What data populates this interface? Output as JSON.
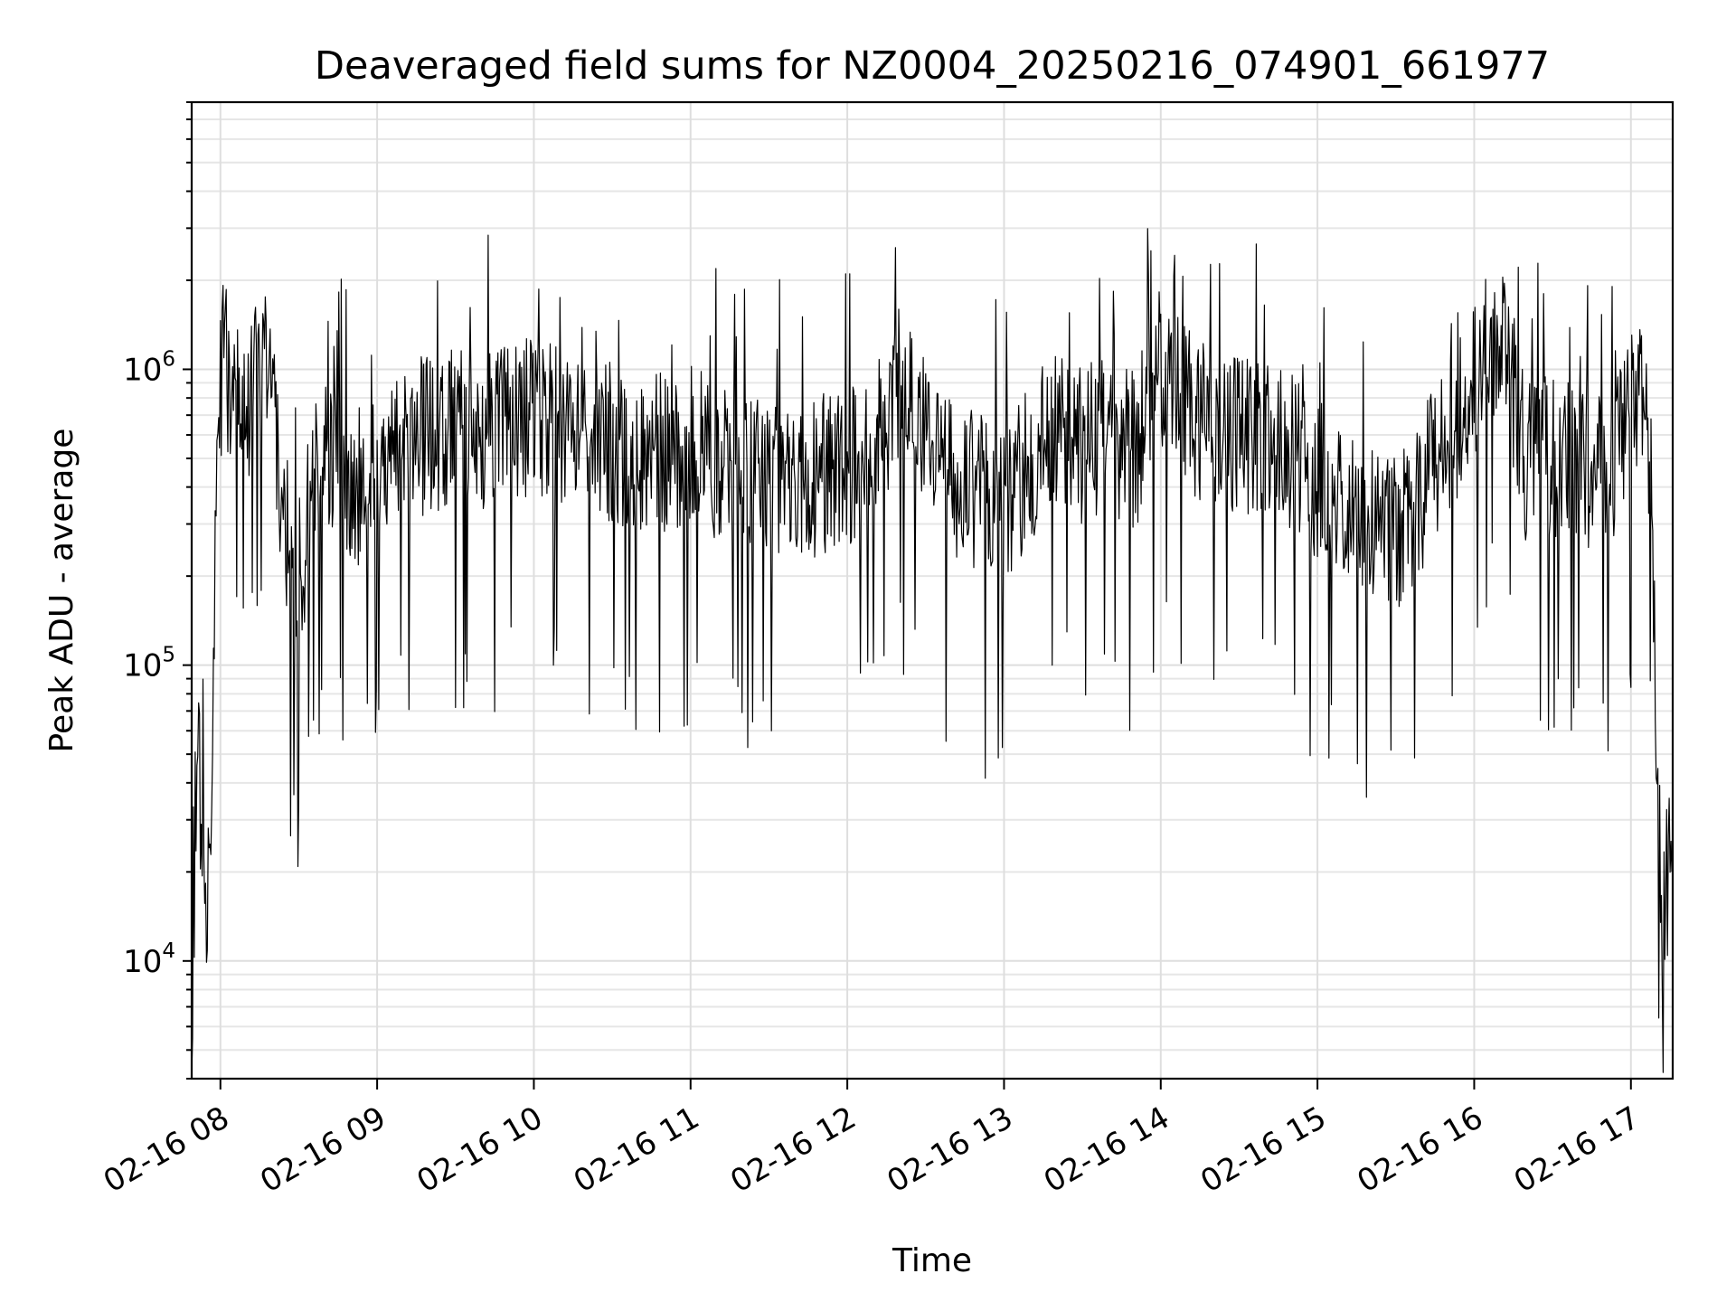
{
  "chart_data": {
    "type": "line",
    "title": "Deaveraged field sums for NZ0004_20250216_074901_661977",
    "xlabel": "Time",
    "ylabel": "Peak ADU - average",
    "yscale": "log",
    "xlim": [
      "2025-02-16 07:49",
      "2025-02-16 17:16"
    ],
    "ylim": [
      4000,
      8000000
    ],
    "grid": true,
    "legend": "none",
    "line_color": "#000000",
    "x_ticks": [
      "02-16 08",
      "02-16 09",
      "02-16 10",
      "02-16 11",
      "02-16 12",
      "02-16 13",
      "02-16 14",
      "02-16 15",
      "02-16 16",
      "02-16 17"
    ],
    "y_ticks": [
      {
        "value": 10000,
        "base": "10",
        "exp": "4"
      },
      {
        "value": 100000,
        "base": "10",
        "exp": "5"
      },
      {
        "value": 1000000,
        "base": "10",
        "exp": "6"
      }
    ],
    "series": [
      {
        "x": [
          "07:49",
          "07:51",
          "07:53",
          "07:55",
          "07:57",
          "07:59",
          "08:01",
          "08:05",
          "08:10",
          "08:15",
          "08:20",
          "08:25",
          "08:30",
          "08:35",
          "08:40",
          "08:45",
          "08:50",
          "08:55",
          "09:00",
          "09:10",
          "09:20",
          "09:30",
          "09:40",
          "09:50",
          "10:00",
          "10:15",
          "10:30",
          "10:45",
          "11:00",
          "11:15",
          "11:30",
          "11:45",
          "12:00",
          "12:10",
          "12:20",
          "12:30",
          "12:40",
          "12:50",
          "13:00",
          "13:10",
          "13:20",
          "13:30",
          "13:40",
          "13:50",
          "14:00",
          "14:15",
          "14:30",
          "14:45",
          "15:00",
          "15:15",
          "15:30",
          "15:45",
          "15:50",
          "15:55",
          "16:00",
          "16:05",
          "16:10",
          "16:15",
          "16:20",
          "16:30",
          "16:40",
          "16:50",
          "17:00",
          "17:05",
          "17:08",
          "17:10",
          "17:12",
          "17:14",
          "17:16"
        ],
        "y": [
          7000,
          60000,
          30000,
          15000,
          80000,
          700000,
          1100000,
          1000000,
          800000,
          1200000,
          900000,
          300000,
          200000,
          400000,
          600000,
          500000,
          400000,
          450000,
          550000,
          600000,
          650000,
          700000,
          650000,
          700000,
          750000,
          650000,
          600000,
          550000,
          600000,
          500000,
          480000,
          450000,
          500000,
          550000,
          1000000,
          600000,
          450000,
          400000,
          380000,
          500000,
          700000,
          600000,
          650000,
          550000,
          1100000,
          700000,
          650000,
          600000,
          450000,
          350000,
          300000,
          500000,
          600000,
          800000,
          1000000,
          1300000,
          1500000,
          900000,
          500000,
          550000,
          500000,
          450000,
          800000,
          1000000,
          400000,
          50000,
          15000,
          20000,
          25000
        ]
      }
    ]
  }
}
